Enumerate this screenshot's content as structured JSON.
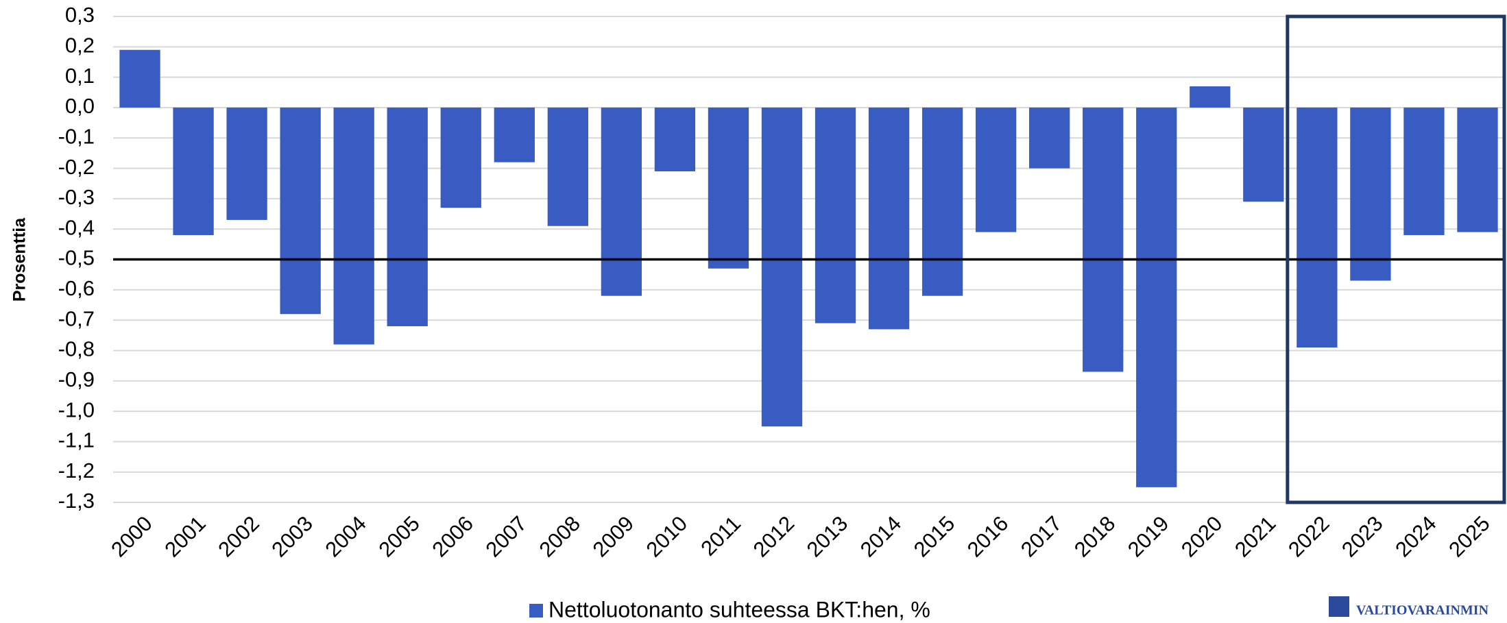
{
  "chart_data": {
    "type": "bar",
    "y_label": "Prosenttia",
    "categories": [
      "2000",
      "2001",
      "2002",
      "2003",
      "2004",
      "2005",
      "2006",
      "2007",
      "2008",
      "2009",
      "2010",
      "2011",
      "2012",
      "2013",
      "2014",
      "2015",
      "2016",
      "2017",
      "2018",
      "2019",
      "2020",
      "2021",
      "2022",
      "2023",
      "2024",
      "2025"
    ],
    "series": [
      {
        "name": "Nettoluotonanto suhteessa BKT:hen, %",
        "color": "#385cc1",
        "values": [
          0.19,
          -0.42,
          -0.37,
          -0.68,
          -0.78,
          -0.72,
          -0.33,
          -0.18,
          -0.39,
          -0.62,
          -0.21,
          -0.53,
          -1.05,
          -0.71,
          -0.73,
          -0.62,
          -0.41,
          -0.2,
          -0.87,
          -1.25,
          0.07,
          -0.31,
          -0.79,
          -0.57,
          -0.42,
          -0.41
        ]
      }
    ],
    "ylim": [
      -1.3,
      0.3
    ],
    "yticks": [
      {
        "value": 0.3,
        "label": "0,3"
      },
      {
        "value": 0.2,
        "label": "0,2"
      },
      {
        "value": 0.1,
        "label": "0,1"
      },
      {
        "value": 0,
        "label": "0,0"
      },
      {
        "value": -0.1,
        "label": "-0,1"
      },
      {
        "value": -0.2,
        "label": "-0,2"
      },
      {
        "value": -0.3,
        "label": "-0,3"
      },
      {
        "value": -0.4,
        "label": "-0,4"
      },
      {
        "value": -0.5,
        "label": "-0,5"
      },
      {
        "value": -0.6,
        "label": "-0,6"
      },
      {
        "value": -0.7,
        "label": "-0,7"
      },
      {
        "value": -0.8,
        "label": "-0,8"
      },
      {
        "value": -0.9,
        "label": "-0,9"
      },
      {
        "value": -1.0,
        "label": "-1,0"
      },
      {
        "value": -1.1,
        "label": "-1,1"
      },
      {
        "value": -1.2,
        "label": "-1,2"
      },
      {
        "value": -1.3,
        "label": "-1,3"
      }
    ],
    "grid": true,
    "reference_line": -0.5,
    "highlight": [
      22,
      25
    ],
    "legend": "bottom",
    "logo_text": "VALTIOVARAINMIN"
  }
}
